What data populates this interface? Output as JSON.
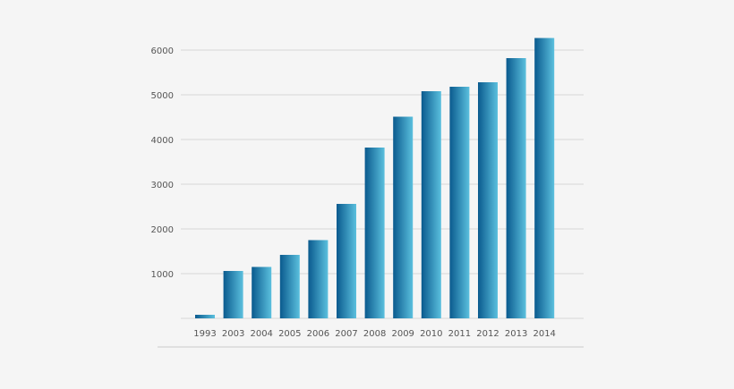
{
  "chart_data": {
    "type": "bar",
    "categories": [
      "1993",
      "2003",
      "2004",
      "2005",
      "2006",
      "2007",
      "2008",
      "2009",
      "2010",
      "2011",
      "2012",
      "2013",
      "2014"
    ],
    "values": [
      80,
      1060,
      1150,
      1420,
      1750,
      2560,
      3820,
      4510,
      5080,
      5180,
      5280,
      5820,
      6270
    ],
    "title": "",
    "xlabel": "",
    "ylabel": "",
    "ylim": [
      0,
      6000
    ],
    "yticks": [
      1000,
      2000,
      3000,
      4000,
      5000,
      6000
    ],
    "grid": true,
    "legend": "none",
    "colors": {
      "bar_dark": "#0a5a8e",
      "bar_light": "#5bc0de",
      "grid": "#d8d8d8",
      "baseline": "#cccccc",
      "background": "#f5f5f5",
      "text": "#555555"
    }
  }
}
